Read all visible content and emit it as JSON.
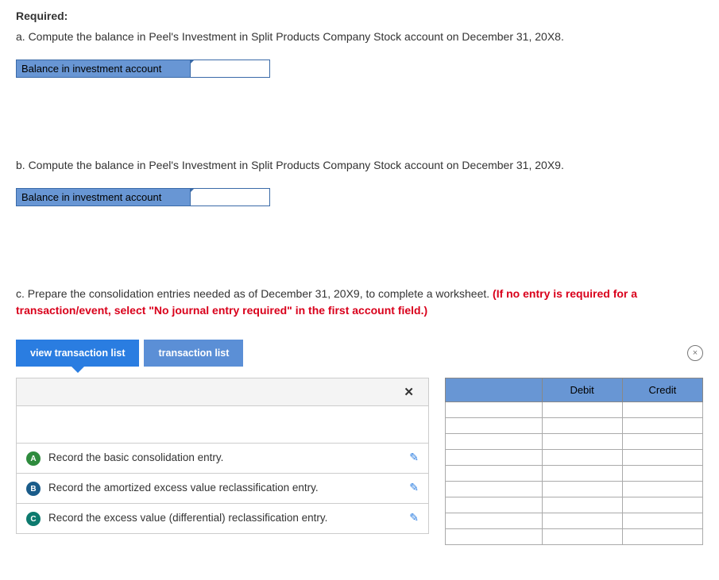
{
  "required_label": "Required:",
  "part_a": "a. Compute the balance in Peel's Investment in Split Products Company Stock account on December 31, 20X8.",
  "balance_label": "Balance in investment account",
  "part_b": "b. Compute the balance in Peel's Investment in Split Products Company Stock account on December 31, 20X9.",
  "part_c_prefix": "c. Prepare the consolidation entries needed as of December 31, 20X9, to complete a worksheet. ",
  "part_c_red": "(If no entry is required for a transaction/event, select \"No journal entry required\" in the first account field.)",
  "tabs": {
    "view": "view transaction list",
    "trans": "transaction list"
  },
  "close_x": "×",
  "header_x": "✕",
  "grid_headers": {
    "blank": "",
    "debit": "Debit",
    "credit": "Credit"
  },
  "entries": [
    {
      "letter": "A",
      "badge_class": "badge-a",
      "text": "Record the basic consolidation entry."
    },
    {
      "letter": "B",
      "badge_class": "badge-b",
      "text": "Record the amortized excess value reclassification entry."
    },
    {
      "letter": "C",
      "badge_class": "badge-c",
      "text": "Record the excess value (differential) reclassification entry."
    }
  ],
  "pencil_glyph": "✎",
  "grid_rows": 9,
  "colors": {
    "label_bg": "#6896d4",
    "tab_active": "#2a7de1",
    "tab_inactive": "#5b8fd6",
    "red": "#d9001b"
  }
}
